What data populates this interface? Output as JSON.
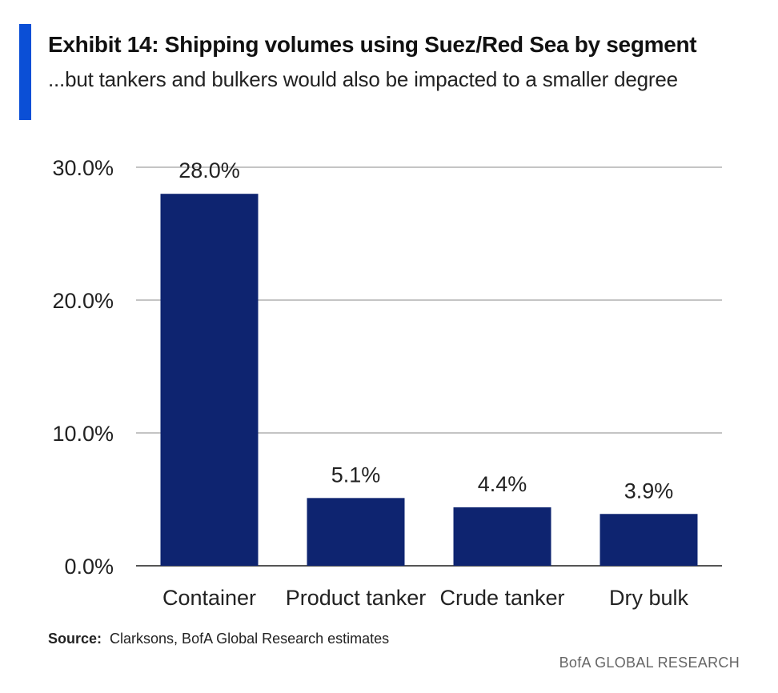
{
  "header": {
    "title": "Exhibit 14: Shipping volumes using Suez/Red Sea by segment",
    "subtitle": "...but tankers and bulkers would also be impacted to a smaller degree"
  },
  "chart_data": {
    "type": "bar",
    "categories": [
      "Container",
      "Product tanker",
      "Crude tanker",
      "Dry bulk"
    ],
    "values": [
      28.0,
      5.1,
      4.4,
      3.9
    ],
    "data_labels": [
      "28.0%",
      "5.1%",
      "4.4%",
      "3.9%"
    ],
    "yticks": [
      0,
      10,
      20,
      30
    ],
    "ytick_labels": [
      "0.0%",
      "10.0%",
      "20.0%",
      "30.0%"
    ],
    "ylim": [
      0,
      30
    ],
    "grid": true,
    "bar_color": "#0e2470",
    "title": "Exhibit 14: Shipping volumes using Suez/Red Sea by segment",
    "xlabel": "",
    "ylabel": ""
  },
  "source": {
    "label": "Source:",
    "text": "Clarksons, BofA Global Research estimates"
  },
  "footer": {
    "brand": "BofA GLOBAL RESEARCH"
  }
}
